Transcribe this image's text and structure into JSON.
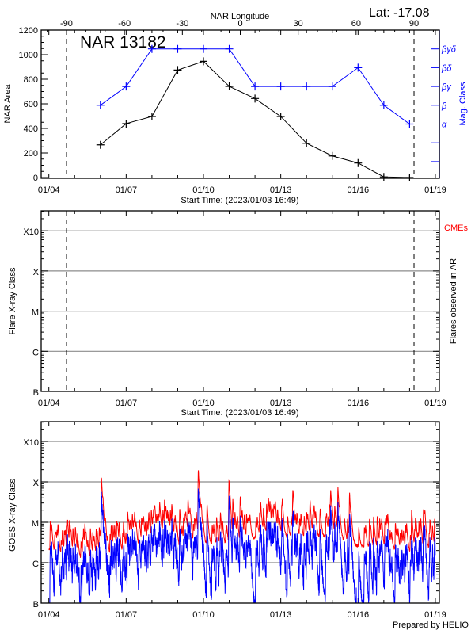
{
  "header": {
    "title": "NAR 13182",
    "latitude": "Lat: -17.08",
    "footer": "Prepared by HELIO"
  },
  "chart_data": [
    {
      "type": "line",
      "title": "NAR 13182",
      "xlabel": "Start Time: (2023/01/03 16:49)",
      "ylabel": "NAR Area",
      "y2label": "Mag. Class",
      "x2label": "NAR Longitude",
      "x_ticks": [
        "01/04",
        "01/07",
        "01/10",
        "01/13",
        "01/16",
        "01/19"
      ],
      "xlim": [
        "2023-01-04",
        "2023-01-19"
      ],
      "ylim": [
        0,
        1200
      ],
      "y_ticks": [
        0,
        200,
        400,
        600,
        800,
        1000,
        1200
      ],
      "x2_ticks": [
        -90,
        -60,
        -30,
        0,
        30,
        60,
        90
      ],
      "x2lim": [
        -90,
        90
      ],
      "limb_lines_longitude": [
        -90,
        90
      ],
      "y2_ticks": [
        "βγδ",
        "βδ",
        "βγ",
        "β",
        "α",
        "",
        ""
      ],
      "grid": false,
      "series": [
        {
          "color": "#000000",
          "x": [
            "2023-01-06",
            "2023-01-07",
            "2023-01-08",
            "2023-01-09",
            "2023-01-10",
            "2023-01-11",
            "2023-01-12",
            "2023-01-13",
            "2023-01-14",
            "2023-01-15",
            "2023-01-16",
            "2023-01-17",
            "2023-01-18"
          ],
          "values": [
            266,
            439,
            497,
            875,
            946,
            742,
            643,
            497,
            279,
            176,
            118,
            5,
            0
          ]
        },
        {
          "color": "#0000ff",
          "x": [
            "2023-01-06",
            "2023-01-07",
            "2023-01-08",
            "2023-01-09",
            "2023-01-10",
            "2023-01-11",
            "2023-01-12",
            "2023-01-13",
            "2023-01-14",
            "2023-01-15",
            "2023-01-16",
            "2023-01-17",
            "2023-01-18"
          ],
          "values": [
            "β",
            "βγ",
            "βγδ",
            "βγδ",
            "βγδ",
            "βγδ",
            "βγ",
            "βγ",
            "βγ",
            "βγ",
            "βδ",
            "β",
            "α"
          ]
        }
      ]
    },
    {
      "type": "line",
      "xlabel": "Start Time: (2023/01/03 16:49)",
      "ylabel": "Flare X-ray Class",
      "y2label": "Flares observed in AR",
      "legend": "CMEs",
      "legend_color": "#ff0000",
      "x_ticks": [
        "01/04",
        "01/07",
        "01/10",
        "01/13",
        "01/16",
        "01/19"
      ],
      "xlim": [
        "2023-01-04",
        "2023-01-19"
      ],
      "y_scale": "log",
      "ylim": [
        1e-07,
        0.0032
      ],
      "y_ticks": [
        {
          "label": "B",
          "value": 1e-07
        },
        {
          "label": "C",
          "value": 1e-06
        },
        {
          "label": "M",
          "value": 1e-05
        },
        {
          "label": "X",
          "value": 0.0001
        },
        {
          "label": "X10",
          "value": 0.001
        }
      ],
      "grid": true,
      "limb_lines_longitude": [
        -90,
        90
      ],
      "series": []
    },
    {
      "type": "line",
      "ylabel": "GOES X-ray Class",
      "x_ticks": [
        "01/04",
        "01/07",
        "01/10",
        "01/13",
        "01/16",
        "01/19"
      ],
      "xlim": [
        "2023-01-04",
        "2023-01-19"
      ],
      "y_scale": "log",
      "ylim": [
        1e-07,
        0.0031
      ],
      "y_ticks": [
        {
          "label": "B",
          "value": 1e-07
        },
        {
          "label": "C",
          "value": 1e-06
        },
        {
          "label": "M",
          "value": 1e-05
        },
        {
          "label": "X",
          "value": 0.0001
        },
        {
          "label": "X10",
          "value": 0.001
        }
      ],
      "grid": true,
      "series": [
        {
          "color": "#ff0000",
          "background": [
            [
              "2023-01-04T00:00",
              2.2e-06
            ],
            [
              "2023-01-04T07:00",
              1.4e-06
            ],
            [
              "2023-01-05T12:00",
              1.2e-06
            ],
            [
              "2023-01-06T12:00",
              1.6e-06
            ],
            [
              "2023-01-07T12:00",
              2.2e-06
            ],
            [
              "2023-01-08T12:00",
              6e-06
            ],
            [
              "2023-01-09T00:00",
              2.2e-06
            ],
            [
              "2023-01-10T00:00",
              2.8e-06
            ],
            [
              "2023-01-11T00:00",
              2.5e-06
            ],
            [
              "2023-01-11T12:00",
              2.8e-06
            ],
            [
              "2023-01-12T07:00",
              5.2e-06
            ],
            [
              "2023-01-13T00:00",
              4.5e-06
            ],
            [
              "2023-01-14T00:00",
              3.9e-06
            ],
            [
              "2023-01-15T00:00",
              4.5e-06
            ],
            [
              "2023-01-16T00:00",
              2.5e-06
            ],
            [
              "2023-01-17T00:00",
              2.2e-06
            ],
            [
              "2023-01-18T00:00",
              1.8e-06
            ],
            [
              "2023-01-19T00:00",
              2.2e-06
            ]
          ],
          "peaks": [
            [
              "2023-01-04T19:12",
              8.6e-06
            ],
            [
              "2023-01-05T09:36",
              7e-06
            ],
            [
              "2023-01-06T01:00",
              0.000126
            ],
            [
              "2023-01-06T02:24",
              1.3e-05
            ],
            [
              "2023-01-07T01:26",
              1.6e-05
            ],
            [
              "2023-01-08T10:19",
              1.4e-05
            ],
            [
              "2023-01-09T01:55",
              1.5e-05
            ],
            [
              "2023-01-09T09:36",
              2.1e-05
            ],
            [
              "2023-01-09T19:12",
              0.0002
            ],
            [
              "2023-01-10T03:22",
              2.6e-05
            ],
            [
              "2023-01-10T23:50",
              0.00011
            ],
            [
              "2023-01-11T03:22",
              2.4e-05
            ],
            [
              "2023-01-11T10:19",
              3.1e-05
            ],
            [
              "2023-01-12T07:55",
              1.6e-05
            ],
            [
              "2023-01-13T11:17",
              4e-05
            ],
            [
              "2023-01-14T03:22",
              1.35e-05
            ],
            [
              "2023-01-14T22:34",
              4.6e-05
            ],
            [
              "2023-01-15T05:17",
              6e-05
            ],
            [
              "2023-01-15T16:05",
              5e-05
            ],
            [
              "2023-01-17T02:38",
              9.5e-06
            ],
            [
              "2023-01-18T01:55",
              1.9e-05
            ],
            [
              "2023-01-18T12:58",
              1.9e-05
            ],
            [
              "2023-01-18T23:17",
              9.5e-06
            ]
          ]
        },
        {
          "color": "#0000ff"
        }
      ]
    }
  ]
}
